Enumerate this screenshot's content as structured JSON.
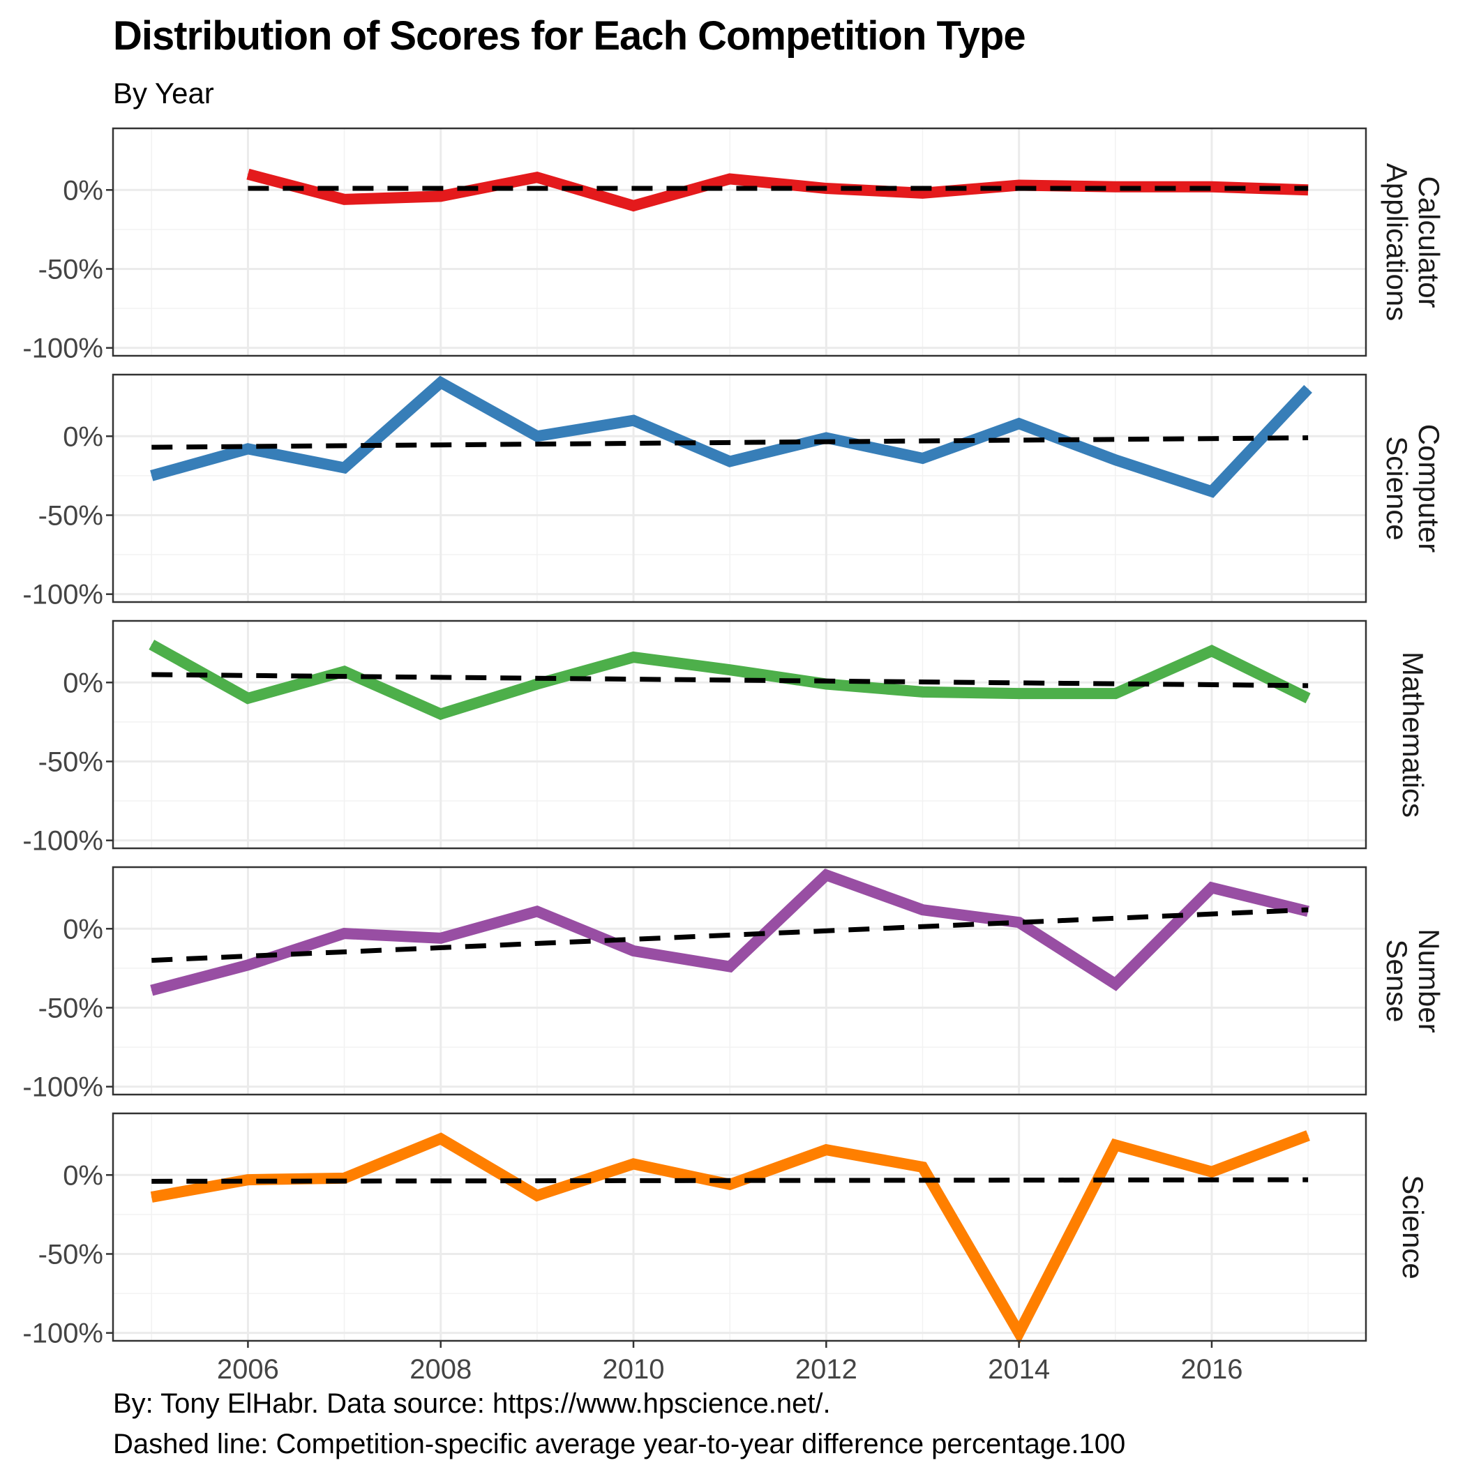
{
  "chart_data": {
    "type": "line",
    "title": "Distribution of Scores for Each Competition Type",
    "subtitle": "By Year",
    "caption_lines": [
      "By: Tony ElHabr. Data source: https://www.hpscience.net/.",
      "Dashed line: Competition-specific average year-to-year difference percentage.100"
    ],
    "x_ticks": [
      2006,
      2008,
      2010,
      2012,
      2014,
      2016
    ],
    "x_tick_labels": [
      "2006",
      "2008",
      "2010",
      "2012",
      "2014",
      "2016"
    ],
    "xlim": [
      2004.6,
      2017.6
    ],
    "y_ticks": [
      0,
      -50,
      -100
    ],
    "y_tick_labels": [
      "0%",
      "-50%",
      "-100%"
    ],
    "ylim": [
      -105,
      39
    ],
    "grid": true,
    "legend": "none",
    "facets": [
      {
        "label_lines": [
          "Calculator",
          "Applications"
        ],
        "color": "#e41a1c",
        "x": [
          2006,
          2007,
          2008,
          2009,
          2010,
          2011,
          2012,
          2013,
          2014,
          2015,
          2016,
          2017
        ],
        "values": [
          10,
          -6,
          -4,
          8,
          -10,
          7,
          1,
          -2,
          3,
          2,
          2,
          0
        ],
        "average": {
          "x": [
            2006,
            2017
          ],
          "y": [
            1,
            1
          ]
        }
      },
      {
        "label_lines": [
          "Computer",
          "Science"
        ],
        "color": "#377eb8",
        "x": [
          2005,
          2006,
          2007,
          2008,
          2009,
          2010,
          2011,
          2012,
          2013,
          2014,
          2015,
          2016,
          2017
        ],
        "values": [
          -25,
          -8,
          -20,
          34,
          0,
          10,
          -16,
          -1,
          -14,
          8,
          -15,
          -35,
          30
        ],
        "average": {
          "x": [
            2005,
            2017
          ],
          "y": [
            -7,
            -1
          ]
        }
      },
      {
        "label_lines": [
          "Mathematics"
        ],
        "color": "#4daf4a",
        "x": [
          2005,
          2006,
          2007,
          2008,
          2009,
          2010,
          2011,
          2012,
          2013,
          2014,
          2015,
          2016,
          2017
        ],
        "values": [
          24,
          -10,
          7,
          -20,
          -1,
          16,
          8,
          -1,
          -6,
          -7,
          -7,
          20,
          -10
        ],
        "average": {
          "x": [
            2005,
            2017
          ],
          "y": [
            5,
            -2
          ]
        }
      },
      {
        "label_lines": [
          "Number",
          "Sense"
        ],
        "color": "#984ea3",
        "x": [
          2005,
          2006,
          2007,
          2008,
          2009,
          2010,
          2011,
          2012,
          2013,
          2014,
          2015,
          2016,
          2017
        ],
        "values": [
          -39,
          -23,
          -3,
          -6,
          11,
          -14,
          -24,
          34,
          12,
          4,
          -35,
          26,
          11
        ],
        "average": {
          "x": [
            2005,
            2017
          ],
          "y": [
            -20,
            12
          ]
        }
      },
      {
        "label_lines": [
          "Science"
        ],
        "color": "#ff7f00",
        "x": [
          2005,
          2006,
          2007,
          2008,
          2009,
          2010,
          2011,
          2012,
          2013,
          2014,
          2015,
          2016,
          2017
        ],
        "values": [
          -14,
          -3,
          -2,
          23,
          -13,
          7,
          -6,
          16,
          5,
          -100,
          19,
          2,
          25
        ],
        "average": {
          "x": [
            2005,
            2017
          ],
          "y": [
            -4,
            -3
          ]
        }
      }
    ]
  }
}
